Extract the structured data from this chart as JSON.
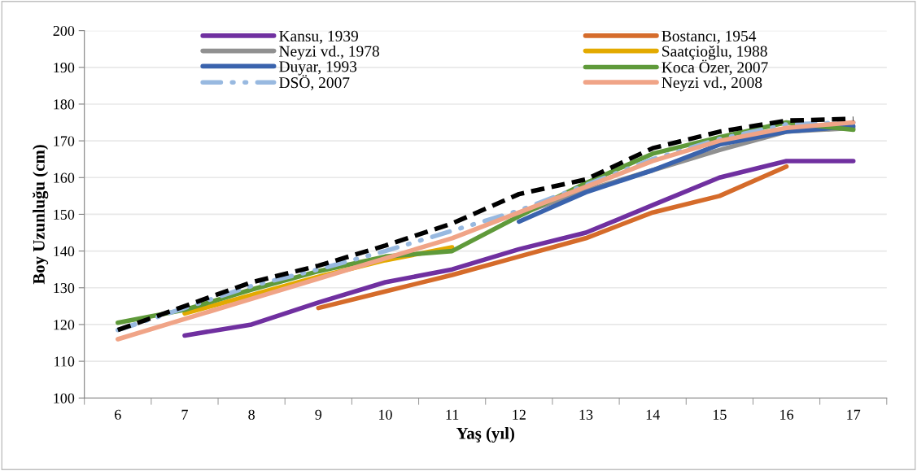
{
  "chart_data": {
    "type": "line",
    "xlabel": "Yaş (yıl)",
    "ylabel": "Boy Uzunluğu (cm)",
    "categories": [
      "6",
      "7",
      "8",
      "9",
      "10",
      "11",
      "12",
      "13",
      "14",
      "15",
      "16",
      "17"
    ],
    "ylim": [
      100,
      200
    ],
    "yticks": [
      100,
      110,
      120,
      130,
      140,
      150,
      160,
      170,
      180,
      190,
      200
    ],
    "grid": "y",
    "legend": "top",
    "marker": "none",
    "series": [
      {
        "name": "Kansu, 1939",
        "color": "#7030a0",
        "values": [
          null,
          117,
          120,
          126,
          131.5,
          135,
          140.5,
          145,
          152.5,
          160,
          164.5,
          164.5
        ]
      },
      {
        "name": "Bostancı, 1954",
        "color": "#d56b2a",
        "values": [
          null,
          null,
          null,
          124.5,
          129,
          133.5,
          138.5,
          143.5,
          150.5,
          155,
          163,
          null
        ]
      },
      {
        "name": "Neyzi vd., 1978",
        "color": "#909090",
        "values": [
          null,
          null,
          null,
          null,
          null,
          null,
          150,
          156.5,
          162,
          167.5,
          172.5,
          173.5
        ]
      },
      {
        "name": "Saatçioğlu, 1988",
        "color": "#e3aa00",
        "values": [
          null,
          123,
          128,
          133,
          137.5,
          141,
          null,
          null,
          null,
          null,
          null,
          null
        ]
      },
      {
        "name": "Duyar, 1993",
        "color": "#3a63ad",
        "values": [
          null,
          null,
          null,
          null,
          null,
          null,
          148,
          156,
          162,
          169,
          172.5,
          174
        ]
      },
      {
        "name": "Koca Özer, 2007",
        "color": "#5f9a3a",
        "values": [
          120.5,
          124,
          129.5,
          134.5,
          138.5,
          140,
          149.5,
          158.5,
          166.5,
          171,
          175,
          173
        ]
      },
      {
        "name": "DSÖ, 2007",
        "color": "#98b9e0",
        "line_style": "dashdot",
        "values": [
          118.5,
          124.5,
          130.5,
          135,
          140,
          145.5,
          151,
          158,
          165,
          170.5,
          174.5,
          175
        ]
      },
      {
        "name": "Neyzi vd., 2008",
        "color": "#f0a487",
        "values": [
          116,
          121.5,
          127,
          132.5,
          138,
          143.5,
          150.5,
          157.5,
          164.5,
          170,
          173.5,
          175
        ]
      },
      {
        "color": "#000000",
        "line_style": "dashed",
        "values": [
          118.5,
          125,
          131.5,
          136,
          141.5,
          147.5,
          155.5,
          159.5,
          168,
          172.5,
          175.5,
          176
        ]
      }
    ]
  }
}
